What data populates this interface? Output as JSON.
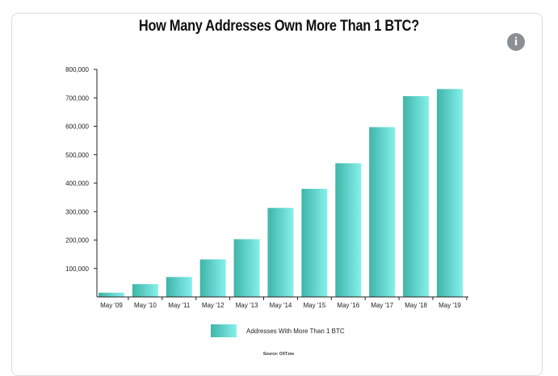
{
  "chart_data": {
    "type": "bar",
    "title": "How Many Addresses Own More Than 1 BTC?",
    "categories": [
      "May '09",
      "May '10",
      "May '11",
      "May '12",
      "May '13",
      "May '14",
      "May '15",
      "May '16",
      "May '17",
      "May '18",
      "May '19"
    ],
    "series": [
      {
        "name": "Addresses With More Than 1 BTC",
        "values": [
          15000,
          45000,
          70000,
          132000,
          203000,
          313000,
          380000,
          470000,
          597000,
          706000,
          731000
        ],
        "color": "#5fd3cb"
      }
    ],
    "ylim": [
      0,
      800000
    ],
    "yticks": [
      "100,000",
      "200,000",
      "300,000",
      "400,000",
      "500,000",
      "600,000",
      "700,000",
      "800,000"
    ],
    "ytick_values": [
      100000,
      200000,
      300000,
      400000,
      500000,
      600000,
      700000,
      800000
    ],
    "xlabel": "",
    "ylabel": "",
    "legend": "bottom-center",
    "grid": false,
    "source": "Source: OXT.me"
  },
  "icons": {
    "info": "info-icon",
    "info_glyph": "i"
  }
}
